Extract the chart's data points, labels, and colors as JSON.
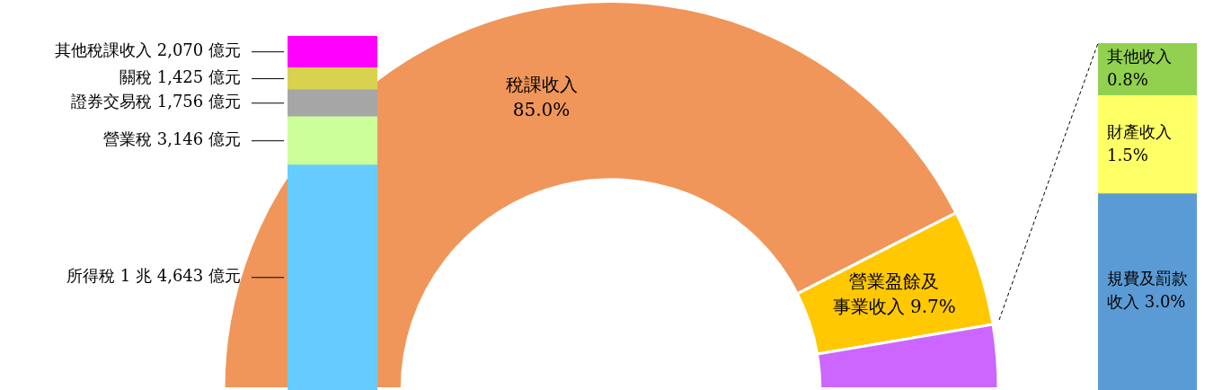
{
  "chart_data": [
    {
      "type": "bar",
      "stacked": true,
      "categories": [
        null
      ],
      "series": [
        {
          "color": "#66ccff",
          "values": [
            14643
          ],
          "value_labels": [
            "所得稅 1 兆 4,643 億元"
          ]
        },
        {
          "color": "#ccff99",
          "values": [
            3146
          ],
          "value_labels": [
            "營業稅 3,146 億元"
          ]
        },
        {
          "color": "#a6a6a6",
          "values": [
            1756
          ],
          "value_labels": [
            "證券交易稅 1,756 億元"
          ]
        },
        {
          "color": "#d9d24f",
          "values": [
            1425
          ],
          "value_labels": [
            "關稅 1,425 億元"
          ]
        },
        {
          "color": "#ff00ff",
          "values": [
            2070
          ],
          "value_labels": [
            "其他稅課收入 2,070 億元"
          ]
        }
      ]
    },
    {
      "type": "donut",
      "categories": [
        "稅課收入",
        "營業盈餘及事業收入",
        null
      ],
      "values": [
        85.0,
        9.7,
        5.3
      ],
      "colors": [
        "#f0965a",
        "#ffc800",
        "#cc66ff"
      ],
      "value_labels": [
        "85.0%",
        "9.7%",
        null
      ]
    },
    {
      "type": "bar",
      "stacked": true,
      "categories": [
        null
      ],
      "series": [
        {
          "name": "規費及罰款收入",
          "color": "#5b9bd5",
          "values": [
            3.0
          ],
          "value_labels": [
            "3.0%"
          ]
        },
        {
          "name": "財產收入",
          "color": "#ffff66",
          "values": [
            1.5
          ],
          "value_labels": [
            "1.5%"
          ]
        },
        {
          "name": "其他收入",
          "color": "#92d050",
          "values": [
            0.8
          ],
          "value_labels": [
            "0.8%"
          ]
        }
      ]
    }
  ]
}
